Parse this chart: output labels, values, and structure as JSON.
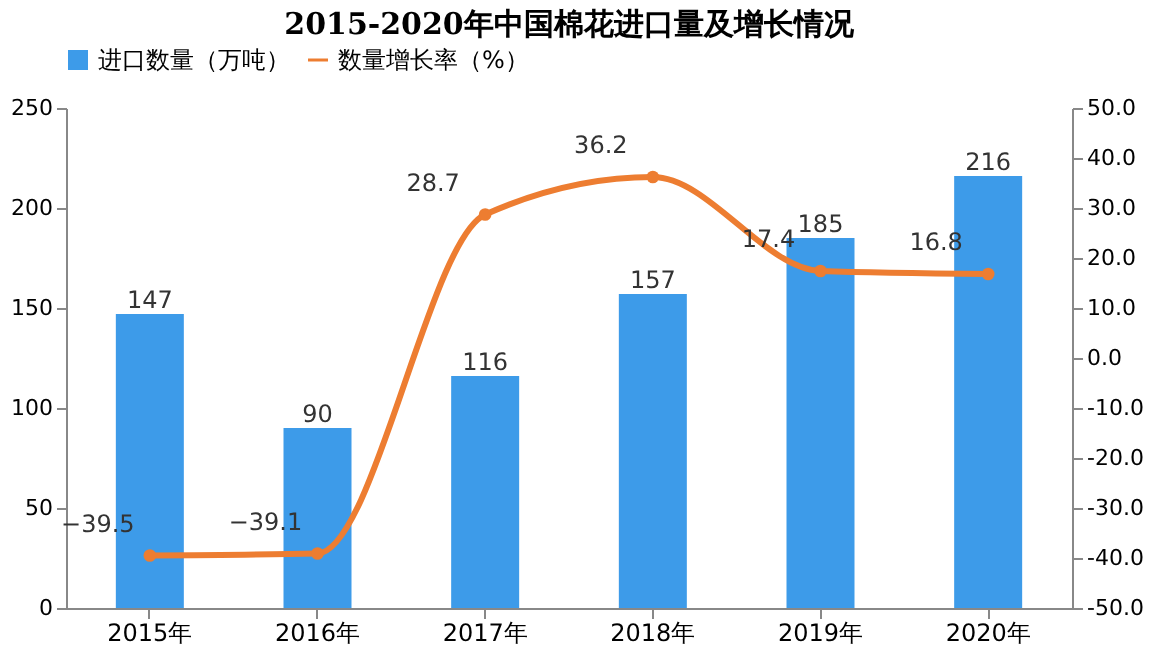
{
  "chart_data": {
    "type": "bar",
    "title": "2015-2020年中国棉花进口量及增长情况",
    "categories": [
      "2015年",
      "2016年",
      "2017年",
      "2018年",
      "2019年",
      "2020年"
    ],
    "series": [
      {
        "name": "进口数量（万吨）",
        "color": "#3d9be9",
        "values": [
          147,
          90,
          116,
          157,
          185,
          216
        ]
      },
      {
        "name": "数量增长率（%）",
        "type": "line",
        "axis": "y2",
        "color": "#ed7d31",
        "values": [
          -39.5,
          -39.1,
          28.7,
          36.2,
          17.4,
          16.8
        ]
      }
    ],
    "ylim": [
      0,
      250
    ],
    "yticks": [
      0,
      50,
      100,
      150,
      200,
      250
    ],
    "y2lim": [
      -50,
      50
    ],
    "y2ticks": [
      {
        "value": -50,
        "label": "-50.0"
      },
      {
        "value": -40,
        "label": "-40.0"
      },
      {
        "value": -30,
        "label": "-30.0"
      },
      {
        "value": -20,
        "label": "-20.0"
      },
      {
        "value": -10,
        "label": "-10.0"
      },
      {
        "value": 0,
        "label": "0.0"
      },
      {
        "value": 10,
        "label": "10.0"
      },
      {
        "value": 20,
        "label": "20.0"
      },
      {
        "value": 30,
        "label": "30.0"
      },
      {
        "value": 40,
        "label": "40.0"
      },
      {
        "value": 50,
        "label": "50.0"
      }
    ],
    "data_labels": true,
    "legend": "top",
    "grid": false,
    "marker": "circle",
    "line_style": "solid"
  }
}
